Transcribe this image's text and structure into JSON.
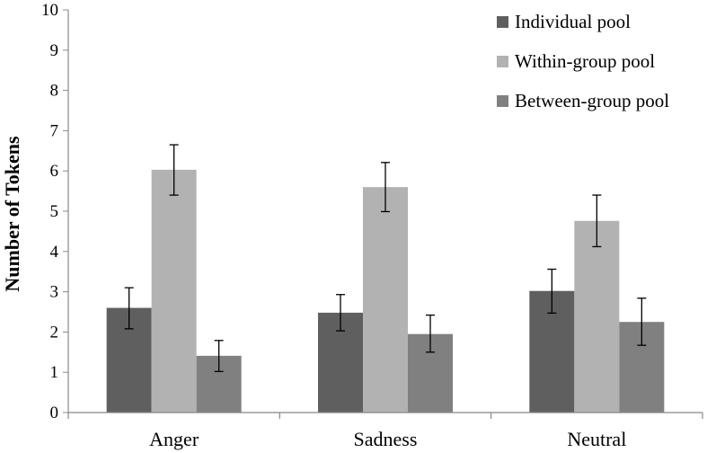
{
  "chart_data": {
    "type": "bar",
    "title": "",
    "xlabel": "",
    "ylabel": "Number of Tokens",
    "ylim": [
      0,
      10
    ],
    "yticks": [
      0,
      1,
      2,
      3,
      4,
      5,
      6,
      7,
      8,
      9,
      10
    ],
    "ytick_labels": [
      "0",
      "1",
      "2",
      "3",
      "4",
      "5",
      "6",
      "7",
      "8",
      "9",
      "10"
    ],
    "categories": [
      "Anger",
      "Sadness",
      "Neutral"
    ],
    "legend_position": "top-right",
    "grid": false,
    "series": [
      {
        "name": "Individual pool",
        "color": "#5f5f5f",
        "values": [
          2.6,
          2.48,
          3.02
        ],
        "err_low": [
          2.08,
          2.03,
          2.47
        ],
        "err_high": [
          3.1,
          2.93,
          3.56
        ]
      },
      {
        "name": "Within-group pool",
        "color": "#b2b2b2",
        "values": [
          6.03,
          5.6,
          4.76
        ],
        "err_low": [
          5.4,
          4.99,
          4.12
        ],
        "err_high": [
          6.65,
          6.21,
          5.4
        ]
      },
      {
        "name": "Between-group pool",
        "color": "#808080",
        "values": [
          1.41,
          1.95,
          2.25
        ],
        "err_low": [
          1.02,
          1.5,
          1.67
        ],
        "err_high": [
          1.79,
          2.42,
          2.84
        ]
      }
    ]
  }
}
